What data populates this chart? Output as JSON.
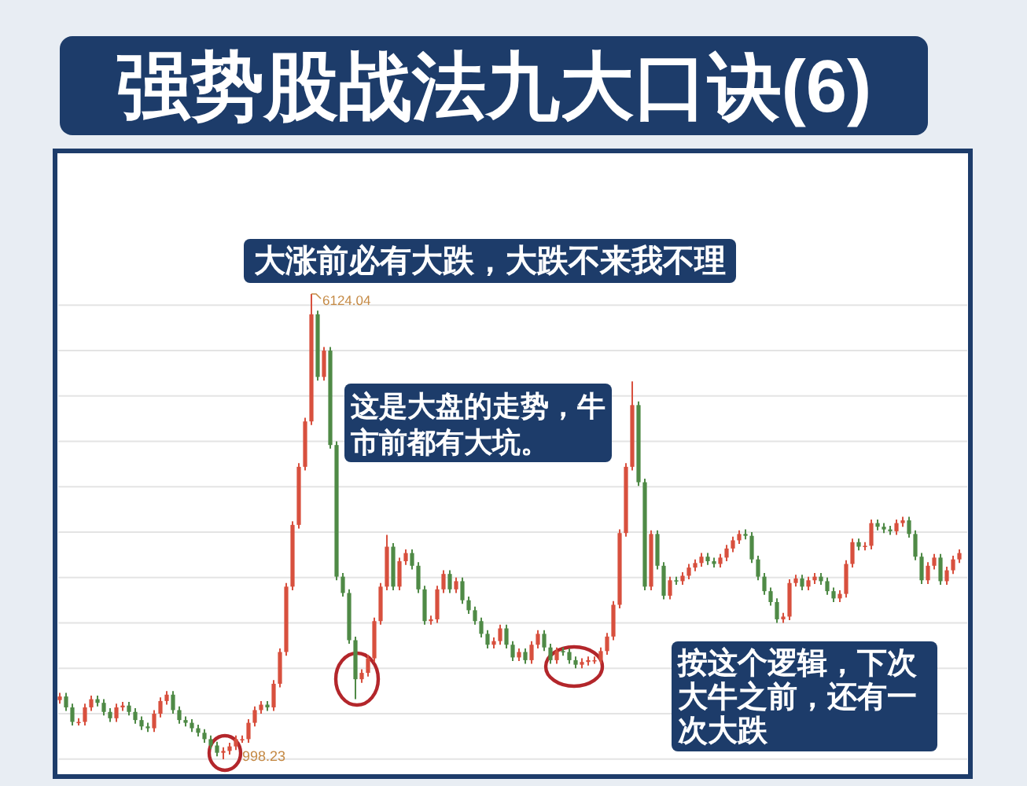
{
  "chart_data": {
    "type": "candlestick",
    "title": "强势股战法九大口诀(6)",
    "categories": [
      null,
      null,
      null,
      null,
      null,
      null,
      null,
      null,
      null,
      null,
      null,
      null,
      null,
      null,
      null,
      null,
      null,
      null,
      null,
      null,
      null,
      null,
      null,
      null,
      null,
      null,
      null,
      null,
      null,
      null,
      null,
      null,
      null,
      null,
      null,
      null,
      null,
      null,
      null,
      null,
      null,
      null,
      null,
      null,
      null,
      null,
      null,
      null,
      null,
      null,
      null,
      null,
      null,
      null,
      null,
      null,
      null,
      null,
      null,
      null,
      null,
      null,
      null,
      null,
      null,
      null,
      null,
      null,
      null,
      null,
      null,
      null,
      null,
      null,
      null,
      null,
      null,
      null,
      null,
      null,
      null,
      null,
      null,
      null,
      null,
      null,
      null,
      null,
      null,
      null,
      null,
      null,
      null,
      null,
      null,
      null,
      null,
      null,
      null,
      null,
      null,
      null,
      null,
      null,
      null,
      null,
      null,
      null,
      null,
      null,
      null,
      null,
      null,
      null,
      null,
      null,
      null,
      null,
      null,
      null,
      null,
      null,
      null,
      null,
      null,
      null,
      null,
      null,
      null,
      null,
      null,
      null,
      null,
      null,
      null,
      null,
      null,
      null,
      null,
      null,
      null,
      null,
      null,
      null
    ],
    "ohlc": [
      [
        1650,
        1730,
        1610,
        1690
      ],
      [
        1690,
        1730,
        1530,
        1570
      ],
      [
        1570,
        1610,
        1370,
        1410
      ],
      [
        1410,
        1450,
        1370,
        1410
      ],
      [
        1410,
        1610,
        1370,
        1570
      ],
      [
        1570,
        1700,
        1530,
        1660
      ],
      [
        1660,
        1700,
        1580,
        1620
      ],
      [
        1620,
        1660,
        1480,
        1520
      ],
      [
        1520,
        1560,
        1410,
        1450
      ],
      [
        1450,
        1610,
        1410,
        1570
      ],
      [
        1570,
        1630,
        1530,
        1590
      ],
      [
        1590,
        1630,
        1480,
        1520
      ],
      [
        1520,
        1560,
        1390,
        1430
      ],
      [
        1430,
        1470,
        1320,
        1360
      ],
      [
        1360,
        1400,
        1300,
        1340
      ],
      [
        1340,
        1540,
        1300,
        1500
      ],
      [
        1500,
        1680,
        1460,
        1640
      ],
      [
        1640,
        1750,
        1600,
        1710
      ],
      [
        1710,
        1750,
        1500,
        1540
      ],
      [
        1540,
        1580,
        1390,
        1430
      ],
      [
        1430,
        1470,
        1360,
        1400
      ],
      [
        1400,
        1440,
        1300,
        1340
      ],
      [
        1340,
        1380,
        1250,
        1290
      ],
      [
        1290,
        1330,
        1180,
        1220
      ],
      [
        1220,
        1260,
        1110,
        1150
      ],
      [
        1150,
        1190,
        1030,
        1070
      ],
      [
        1070,
        1130,
        998.23,
        1090
      ],
      [
        1090,
        1180,
        1050,
        1140
      ],
      [
        1140,
        1260,
        1100,
        1220
      ],
      [
        1220,
        1260,
        1180,
        1220
      ],
      [
        1220,
        1440,
        1180,
        1400
      ],
      [
        1400,
        1580,
        1360,
        1540
      ],
      [
        1540,
        1640,
        1500,
        1600
      ],
      [
        1600,
        1640,
        1530,
        1570
      ],
      [
        1570,
        1870,
        1530,
        1830
      ],
      [
        1830,
        2220,
        1790,
        2180
      ],
      [
        2180,
        2940,
        2140,
        2900
      ],
      [
        2900,
        3620,
        2860,
        3580
      ],
      [
        3580,
        4260,
        3540,
        4220
      ],
      [
        4220,
        4760,
        4180,
        4720
      ],
      [
        4720,
        6124.04,
        4680,
        5900
      ],
      [
        5900,
        5940,
        5170,
        5210
      ],
      [
        5210,
        5540,
        5170,
        5500
      ],
      [
        5500,
        5540,
        4420,
        4460
      ],
      [
        4460,
        4500,
        2970,
        3010
      ],
      [
        3010,
        3050,
        2790,
        2830
      ],
      [
        2830,
        2870,
        2270,
        2310
      ],
      [
        2310,
        2350,
        1660,
        1880
      ],
      [
        1880,
        1990,
        1840,
        1950
      ],
      [
        1950,
        2150,
        1910,
        2110
      ],
      [
        2110,
        2560,
        2070,
        2520
      ],
      [
        2520,
        2940,
        2480,
        2900
      ],
      [
        2900,
        3470,
        2860,
        3340
      ],
      [
        3340,
        3380,
        2860,
        2900
      ],
      [
        2900,
        3220,
        2860,
        3180
      ],
      [
        3180,
        3310,
        3140,
        3270
      ],
      [
        3270,
        3310,
        3090,
        3130
      ],
      [
        3130,
        3170,
        2830,
        2870
      ],
      [
        2870,
        2910,
        2480,
        2520
      ],
      [
        2520,
        2580,
        2480,
        2540
      ],
      [
        2540,
        2910,
        2500,
        2870
      ],
      [
        2870,
        3080,
        2830,
        3040
      ],
      [
        3040,
        3080,
        2830,
        2870
      ],
      [
        2870,
        3000,
        2830,
        2960
      ],
      [
        2960,
        3000,
        2710,
        2750
      ],
      [
        2750,
        2790,
        2600,
        2640
      ],
      [
        2640,
        2680,
        2480,
        2520
      ],
      [
        2520,
        2560,
        2340,
        2380
      ],
      [
        2380,
        2420,
        2220,
        2260
      ],
      [
        2260,
        2340,
        2220,
        2300
      ],
      [
        2300,
        2480,
        2260,
        2440
      ],
      [
        2440,
        2480,
        2220,
        2260
      ],
      [
        2260,
        2300,
        2080,
        2120
      ],
      [
        2120,
        2220,
        2080,
        2180
      ],
      [
        2180,
        2220,
        2050,
        2090
      ],
      [
        2090,
        2300,
        2050,
        2260
      ],
      [
        2260,
        2420,
        2220,
        2380
      ],
      [
        2380,
        2420,
        2190,
        2230
      ],
      [
        2230,
        2270,
        2050,
        2090
      ],
      [
        2090,
        2230,
        2050,
        2190
      ],
      [
        2190,
        2230,
        2140,
        2180
      ],
      [
        2180,
        2220,
        2050,
        2090
      ],
      [
        2090,
        2130,
        2000,
        2040
      ],
      [
        2040,
        2110,
        2000,
        2070
      ],
      [
        2070,
        2130,
        2030,
        2090
      ],
      [
        2090,
        2130,
        2050,
        2090
      ],
      [
        2090,
        2230,
        2050,
        2190
      ],
      [
        2190,
        2390,
        2150,
        2350
      ],
      [
        2350,
        2740,
        2310,
        2700
      ],
      [
        2700,
        3530,
        2660,
        3490
      ],
      [
        3490,
        4260,
        3450,
        4220
      ],
      [
        4220,
        5160,
        4180,
        4900
      ],
      [
        4900,
        4940,
        4010,
        4050
      ],
      [
        4050,
        4090,
        2860,
        2900
      ],
      [
        2900,
        3520,
        2860,
        3480
      ],
      [
        3480,
        3520,
        3090,
        3130
      ],
      [
        3130,
        3170,
        2760,
        2800
      ],
      [
        2800,
        3010,
        2760,
        2970
      ],
      [
        2970,
        3010,
        2920,
        2960
      ],
      [
        2960,
        3060,
        2920,
        3020
      ],
      [
        3020,
        3150,
        2980,
        3110
      ],
      [
        3110,
        3200,
        3070,
        3160
      ],
      [
        3160,
        3270,
        3120,
        3230
      ],
      [
        3230,
        3270,
        3140,
        3180
      ],
      [
        3180,
        3220,
        3110,
        3150
      ],
      [
        3150,
        3260,
        3110,
        3220
      ],
      [
        3220,
        3360,
        3180,
        3320
      ],
      [
        3320,
        3450,
        3280,
        3410
      ],
      [
        3410,
        3520,
        3370,
        3480
      ],
      [
        3480,
        3530,
        3420,
        3460
      ],
      [
        3460,
        3500,
        3160,
        3200
      ],
      [
        3200,
        3240,
        2970,
        3010
      ],
      [
        3010,
        3050,
        2810,
        2850
      ],
      [
        2850,
        2890,
        2690,
        2730
      ],
      [
        2730,
        2770,
        2500,
        2540
      ],
      [
        2540,
        2610,
        2500,
        2570
      ],
      [
        2570,
        2980,
        2530,
        2940
      ],
      [
        2940,
        3030,
        2900,
        2990
      ],
      [
        2990,
        3030,
        2860,
        2900
      ],
      [
        2900,
        3010,
        2860,
        2970
      ],
      [
        2970,
        3050,
        2930,
        3010
      ],
      [
        3010,
        3050,
        2920,
        2960
      ],
      [
        2960,
        3000,
        2810,
        2850
      ],
      [
        2850,
        2890,
        2730,
        2770
      ],
      [
        2770,
        2860,
        2730,
        2820
      ],
      [
        2820,
        3190,
        2780,
        3150
      ],
      [
        3150,
        3430,
        3110,
        3390
      ],
      [
        3390,
        3430,
        3300,
        3340
      ],
      [
        3340,
        3390,
        3300,
        3350
      ],
      [
        3350,
        3640,
        3310,
        3600
      ],
      [
        3600,
        3640,
        3520,
        3560
      ],
      [
        3560,
        3600,
        3490,
        3530
      ],
      [
        3530,
        3570,
        3470,
        3510
      ],
      [
        3510,
        3640,
        3470,
        3600
      ],
      [
        3600,
        3670,
        3560,
        3630
      ],
      [
        3630,
        3670,
        3440,
        3480
      ],
      [
        3480,
        3520,
        3190,
        3230
      ],
      [
        3230,
        3270,
        2930,
        2970
      ],
      [
        2970,
        3170,
        2930,
        3130
      ],
      [
        3130,
        3260,
        3090,
        3220
      ],
      [
        3220,
        3260,
        2920,
        2960
      ],
      [
        2960,
        3120,
        2920,
        3080
      ],
      [
        3080,
        3240,
        3040,
        3200
      ],
      [
        3200,
        3310,
        3160,
        3270
      ]
    ],
    "colors": [
      "#d8503e",
      "#4f8a46",
      "#4f8a46",
      "#d8503e",
      "#d8503e",
      "#d8503e",
      "#4f8a46",
      "#4f8a46",
      "#4f8a46",
      "#d8503e",
      "#d8503e",
      "#4f8a46",
      "#4f8a46",
      "#4f8a46",
      "#4f8a46",
      "#d8503e",
      "#d8503e",
      "#d8503e",
      "#4f8a46",
      "#4f8a46",
      "#4f8a46",
      "#4f8a46",
      "#4f8a46",
      "#4f8a46",
      "#4f8a46",
      "#4f8a46",
      "#d8503e",
      "#d8503e",
      "#d8503e",
      "#d8503e",
      "#d8503e",
      "#d8503e",
      "#d8503e",
      "#4f8a46",
      "#d8503e",
      "#d8503e",
      "#d8503e",
      "#d8503e",
      "#d8503e",
      "#d8503e",
      "#d8503e",
      "#4f8a46",
      "#d8503e",
      "#4f8a46",
      "#4f8a46",
      "#4f8a46",
      "#4f8a46",
      "#4f8a46",
      "#d8503e",
      "#d8503e",
      "#d8503e",
      "#d8503e",
      "#d8503e",
      "#4f8a46",
      "#d8503e",
      "#d8503e",
      "#4f8a46",
      "#4f8a46",
      "#4f8a46",
      "#d8503e",
      "#d8503e",
      "#d8503e",
      "#4f8a46",
      "#d8503e",
      "#4f8a46",
      "#4f8a46",
      "#4f8a46",
      "#4f8a46",
      "#4f8a46",
      "#d8503e",
      "#d8503e",
      "#4f8a46",
      "#4f8a46",
      "#d8503e",
      "#4f8a46",
      "#d8503e",
      "#d8503e",
      "#4f8a46",
      "#4f8a46",
      "#d8503e",
      "#4f8a46",
      "#4f8a46",
      "#4f8a46",
      "#d8503e",
      "#d8503e",
      "#d8503e",
      "#d8503e",
      "#d8503e",
      "#d8503e",
      "#d8503e",
      "#d8503e",
      "#d8503e",
      "#4f8a46",
      "#4f8a46",
      "#d8503e",
      "#4f8a46",
      "#4f8a46",
      "#d8503e",
      "#4f8a46",
      "#d8503e",
      "#d8503e",
      "#d8503e",
      "#d8503e",
      "#4f8a46",
      "#4f8a46",
      "#d8503e",
      "#d8503e",
      "#d8503e",
      "#d8503e",
      "#4f8a46",
      "#4f8a46",
      "#4f8a46",
      "#4f8a46",
      "#4f8a46",
      "#4f8a46",
      "#d8503e",
      "#d8503e",
      "#d8503e",
      "#4f8a46",
      "#d8503e",
      "#d8503e",
      "#4f8a46",
      "#4f8a46",
      "#4f8a46",
      "#d8503e",
      "#d8503e",
      "#d8503e",
      "#4f8a46",
      "#d8503e",
      "#d8503e",
      "#4f8a46",
      "#4f8a46",
      "#4f8a46",
      "#d8503e",
      "#d8503e",
      "#4f8a46",
      "#4f8a46",
      "#4f8a46",
      "#d8503e",
      "#d8503e",
      "#4f8a46",
      "#d8503e",
      "#d8503e",
      "#d8503e"
    ],
    "yticks": [
      {
        "value": 1000,
        "label": null
      },
      {
        "value": 1500,
        "label": null
      },
      {
        "value": 2000,
        "label": null
      },
      {
        "value": 2500,
        "label": null
      },
      {
        "value": 3000,
        "label": null
      },
      {
        "value": 3500,
        "label": null
      },
      {
        "value": 4000,
        "label": null
      },
      {
        "value": 4500,
        "label": null
      },
      {
        "value": 5000,
        "label": null
      },
      {
        "value": 5500,
        "label": null
      },
      {
        "value": 6000,
        "label": null
      }
    ],
    "grid": "y",
    "annotations": [
      "大涨前必有大跌，大跌不来我不理",
      "这是大盘的走势，牛市前都有大坑。",
      "按这个逻辑，下次大牛之前，还有一次大跌",
      "6124.04",
      "998.23"
    ]
  }
}
